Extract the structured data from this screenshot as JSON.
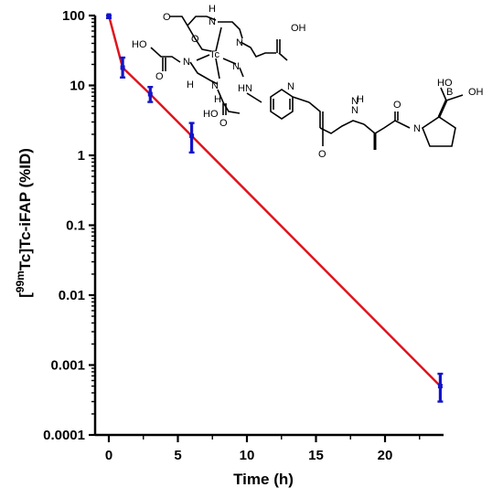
{
  "chart_data": {
    "type": "line",
    "title": "",
    "xlabel": "Time (h)",
    "ylabel": {
      "prefix": "[",
      "superscript": "99m",
      "main": "Tc]Tc-iFAP (%ID)"
    },
    "x_scale": "linear",
    "y_scale": "log",
    "xlim": [
      -1,
      24.5
    ],
    "ylim": [
      0.0001,
      100
    ],
    "x_ticks": [
      0,
      5,
      10,
      15,
      20
    ],
    "x_tick_labels": [
      "0",
      "5",
      "10",
      "15",
      "20"
    ],
    "y_ticks": [
      100,
      10,
      1,
      0.1,
      0.01,
      0.001,
      0.0001
    ],
    "y_tick_labels": [
      "100",
      "10",
      "1",
      "0.1",
      "0.01",
      "0.001",
      "0.0001"
    ],
    "grid": false,
    "legend": "none",
    "line_color": "#e0141e",
    "marker_color": "#1414c8",
    "fit_curve": {
      "x": [
        0,
        1,
        3,
        6,
        24
      ],
      "y": [
        100,
        18,
        7.5,
        1.9,
        0.0005
      ]
    },
    "points": [
      {
        "x": 0,
        "y": 100,
        "y_low": 92,
        "y_high": 100
      },
      {
        "x": 1,
        "y": 18,
        "y_low": 13,
        "y_high": 25
      },
      {
        "x": 3,
        "y": 7.5,
        "y_low": 5.8,
        "y_high": 9.5
      },
      {
        "x": 6,
        "y": 1.9,
        "y_low": 1.1,
        "y_high": 2.9
      },
      {
        "x": 24,
        "y": 0.0005,
        "y_low": 0.0003,
        "y_high": 0.00075
      }
    ]
  },
  "structure": {
    "name": "99mTc-iFAP chemical structure",
    "atom_labels": [
      "O",
      "H",
      "N",
      "O",
      "N",
      "OH",
      "HO",
      "O",
      "N",
      "Tc",
      "N",
      "H",
      "N",
      "HN",
      "N",
      "H",
      "HO",
      "O",
      "N",
      "O",
      "N",
      "H",
      "O",
      "N",
      "B",
      "HO",
      "OH"
    ]
  }
}
